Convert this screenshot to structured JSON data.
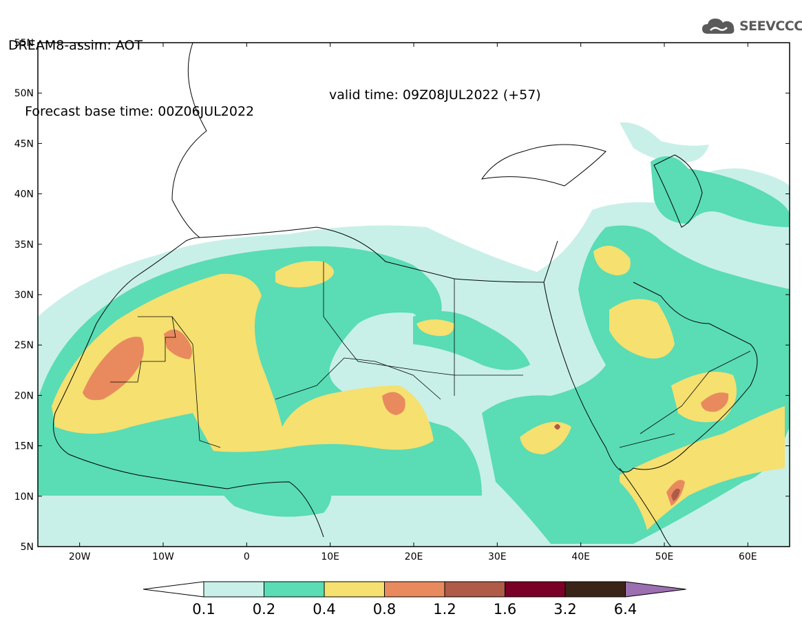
{
  "header": {
    "line1": "DREAM8-assim: AOT",
    "base_time": "Forecast base time: 00Z06JUL2022",
    "valid_time": "valid time: 09Z08JUL2022 (+57)"
  },
  "logo": {
    "text": "SEEVCCC",
    "icon": "cloud-icon"
  },
  "map": {
    "lon_range": [
      -25,
      65
    ],
    "lat_range": [
      5,
      55
    ],
    "lat_labels": [
      "55N",
      "50N",
      "45N",
      "40N",
      "35N",
      "30N",
      "25N",
      "20N",
      "15N",
      "10N",
      "5N"
    ],
    "lon_labels": [
      "20W",
      "10W",
      "0",
      "10E",
      "20E",
      "30E",
      "40E",
      "50E",
      "60E"
    ]
  },
  "colorbar": {
    "labels": [
      "0.1",
      "0.2",
      "0.4",
      "0.8",
      "1.2",
      "1.6",
      "3.2",
      "6.4"
    ],
    "colors": [
      "#c8f0e8",
      "#5adcb4",
      "#f5e070",
      "#e88a5e",
      "#b05a48",
      "#7a0028",
      "#3a2418",
      "#9b6fb0"
    ],
    "under_color": "#ffffff"
  }
}
